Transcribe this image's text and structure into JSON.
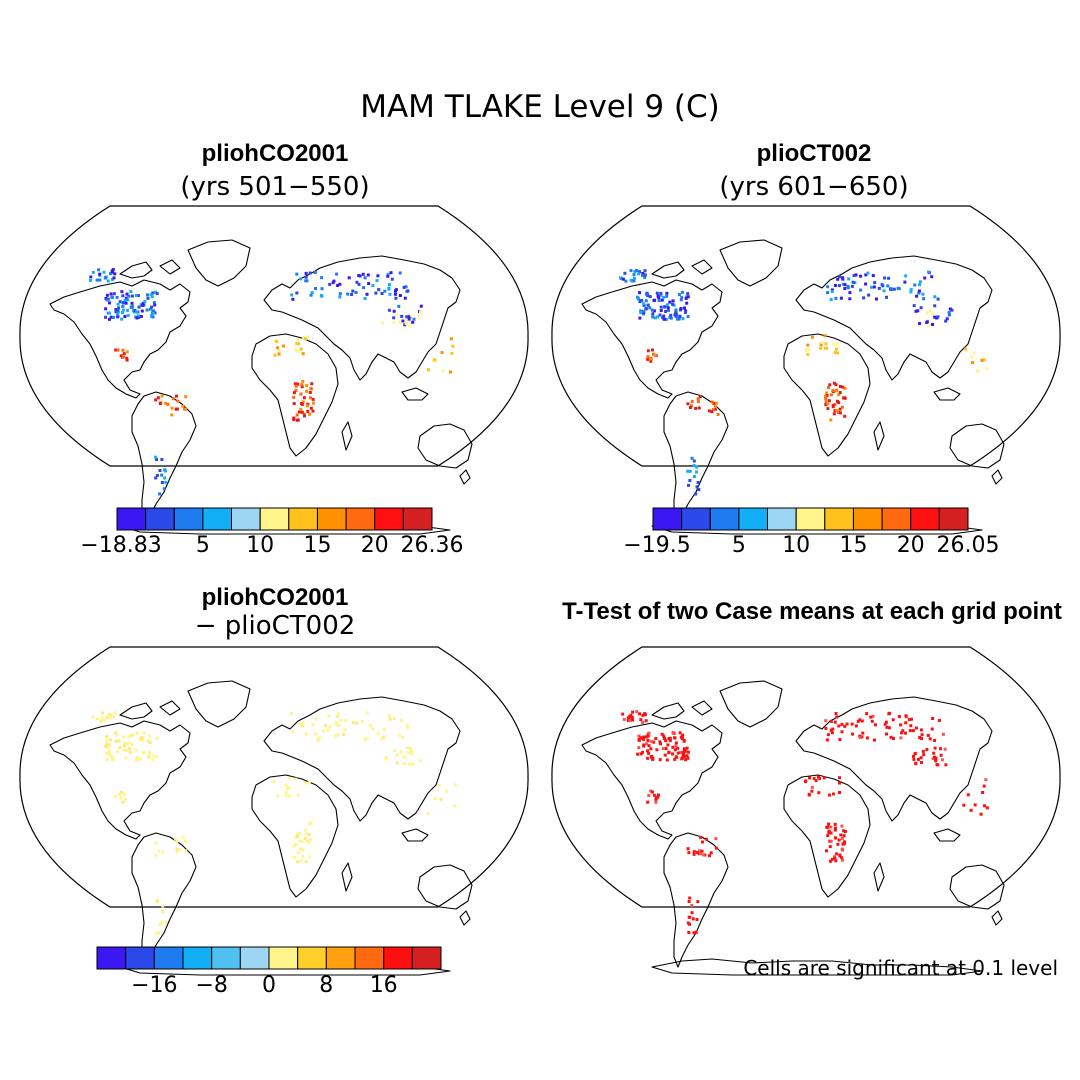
{
  "title": "MAM TLAKE Level 9 (C)",
  "panels": [
    {
      "id": "case1",
      "title": "pliohCO2001",
      "subtitle": "(yrs 501−550)",
      "palette": "full",
      "colorbar": {
        "colors": [
          "#3b17f4",
          "#2b48e8",
          "#1e7bf0",
          "#12aef6",
          "#9cd6f2",
          "#fff58a",
          "#ffc21c",
          "#ff9000",
          "#ff6a10",
          "#ff1010",
          "#d42020"
        ],
        "tick_labels": [
          "−18.83",
          "5",
          "10",
          "15",
          "20",
          "26.36"
        ]
      }
    },
    {
      "id": "case2",
      "title": "plioCT002",
      "subtitle": "(yrs 601−650)",
      "palette": "full",
      "colorbar": {
        "colors": [
          "#3b17f4",
          "#2b48e8",
          "#1e7bf0",
          "#12aef6",
          "#9cd6f2",
          "#fff58a",
          "#ffc21c",
          "#ff9000",
          "#ff6a10",
          "#ff1010",
          "#d42020"
        ],
        "tick_labels": [
          "−19.5",
          "5",
          "10",
          "15",
          "20",
          "26.05"
        ]
      }
    },
    {
      "id": "diff",
      "title": "pliohCO2001",
      "subtitle": "− plioCT002",
      "palette": "yellow",
      "colorbar": {
        "colors": [
          "#3b17f4",
          "#2b48e8",
          "#1e7bf0",
          "#12aef6",
          "#4fc0f0",
          "#9cd6f2",
          "#fff58a",
          "#ffd02c",
          "#ffa010",
          "#ff6a10",
          "#ff1010",
          "#d42020"
        ],
        "tick_labels": [
          "−16",
          "−8",
          "0",
          "8",
          "16"
        ]
      }
    },
    {
      "id": "ttest",
      "title": "T-Test of two Case means at each grid point",
      "subtitle": "",
      "palette": "red",
      "note": "Cells are significant at 0.1 level"
    }
  ]
}
